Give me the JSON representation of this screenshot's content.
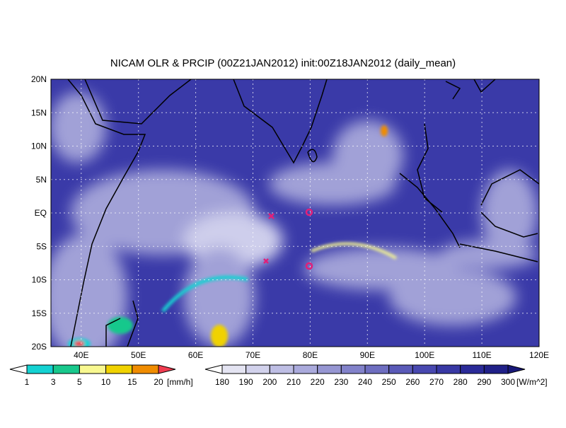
{
  "title": "NICAM OLR & PRCIP (00Z21JAN2012) init:00Z18JAN2012 (daily_mean)",
  "map": {
    "lon_labels": [
      "40E",
      "50E",
      "60E",
      "70E",
      "80E",
      "90E",
      "100E",
      "110E",
      "120E"
    ],
    "lat_labels": [
      "20N",
      "15N",
      "10N",
      "5N",
      "EQ",
      "5S",
      "10S",
      "15S",
      "20S"
    ]
  },
  "precip_bar": {
    "labels": [
      "1",
      "3",
      "5",
      "10",
      "15",
      "20"
    ],
    "unit": "[mm/h]",
    "colors": [
      "#ffffff",
      "#14d2d2",
      "#18c88c",
      "#f8f890",
      "#f0d200",
      "#f08c00",
      "#f03c50"
    ]
  },
  "olr_bar": {
    "labels": [
      "180",
      "190",
      "200",
      "210",
      "220",
      "230",
      "240",
      "250",
      "260",
      "270",
      "280",
      "290",
      "300"
    ],
    "unit": "[W/m^2]",
    "colors": [
      "#ffffff",
      "#e4e4f2",
      "#d2d2ec",
      "#bebee4",
      "#aaaadc",
      "#9696d2",
      "#8282ca",
      "#6e6ec0",
      "#5a5ab8",
      "#4848b0",
      "#3838a4",
      "#2a2a98",
      "#202088",
      "#181878"
    ]
  }
}
